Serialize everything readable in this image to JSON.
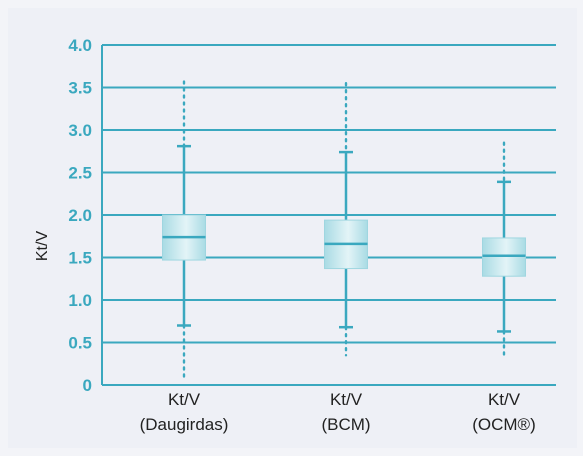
{
  "chart_data": {
    "type": "box",
    "ylabel": "Kt/V",
    "xlabel": "",
    "ylim": [
      0,
      4.0
    ],
    "yticks": [
      "0",
      "0.5",
      "1.0",
      "1.5",
      "2.0",
      "2.5",
      "3.0",
      "3.5",
      "4.0"
    ],
    "grid": true,
    "reference_line": 1.5,
    "categories": [
      {
        "line1": "Kt/V",
        "line2": "(Daugirdas)"
      },
      {
        "line1": "Kt/V",
        "line2": "(BCM)"
      },
      {
        "line1": "Kt/V",
        "line2": "(OCM®)"
      }
    ],
    "boxes": [
      {
        "min": 0.7,
        "q1": 1.47,
        "median": 1.74,
        "q3": 2.0,
        "max": 2.81,
        "min_extreme": 0.1,
        "max_extreme": 3.57
      },
      {
        "min": 0.68,
        "q1": 1.37,
        "median": 1.66,
        "q3": 1.94,
        "max": 2.74,
        "min_extreme": 0.35,
        "max_extreme": 3.55
      },
      {
        "min": 0.63,
        "q1": 1.28,
        "median": 1.52,
        "q3": 1.73,
        "max": 2.39,
        "min_extreme": 0.32,
        "max_extreme": 2.85
      }
    ],
    "colors": {
      "axis": "#3aa8bf",
      "box_fill_light": "#d7eff3",
      "box_fill_dark": "#9fd6e0",
      "median": "#3aa8bf",
      "background": "#eef0f6"
    }
  }
}
